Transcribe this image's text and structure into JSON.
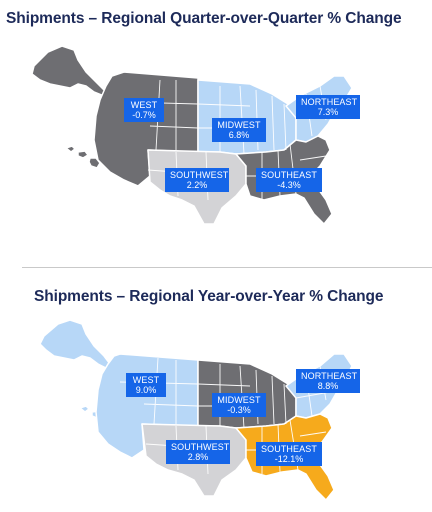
{
  "colors": {
    "increase": "#b7d7f7",
    "decrease": "#6e6e72",
    "strong_decrease": "#f6aa1c",
    "neutral": "#d3d3d6",
    "label_bg": "#1565e8",
    "title": "#1d2a59"
  },
  "maps": [
    {
      "title": "Shipments – Regional Quarter-over-Quarter % Change",
      "regions": [
        {
          "name": "WEST",
          "value": "-0.7%",
          "fill": "decrease"
        },
        {
          "name": "MIDWEST",
          "value": "6.8%",
          "fill": "increase"
        },
        {
          "name": "NORTHEAST",
          "value": "7.3%",
          "fill": "increase"
        },
        {
          "name": "SOUTHWEST",
          "value": "2.2%",
          "fill": "neutral"
        },
        {
          "name": "SOUTHEAST",
          "value": "-4.3%",
          "fill": "decrease"
        }
      ]
    },
    {
      "title": "Shipments – Regional Year-over-Year % Change",
      "regions": [
        {
          "name": "WEST",
          "value": "9.0%",
          "fill": "increase"
        },
        {
          "name": "MIDWEST",
          "value": "-0.3%",
          "fill": "decrease"
        },
        {
          "name": "NORTHEAST",
          "value": "8.8%",
          "fill": "increase"
        },
        {
          "name": "SOUTHWEST",
          "value": "2.8%",
          "fill": "neutral"
        },
        {
          "name": "SOUTHEAST",
          "value": "-12.1%",
          "fill": "strong_decrease"
        }
      ]
    }
  ]
}
